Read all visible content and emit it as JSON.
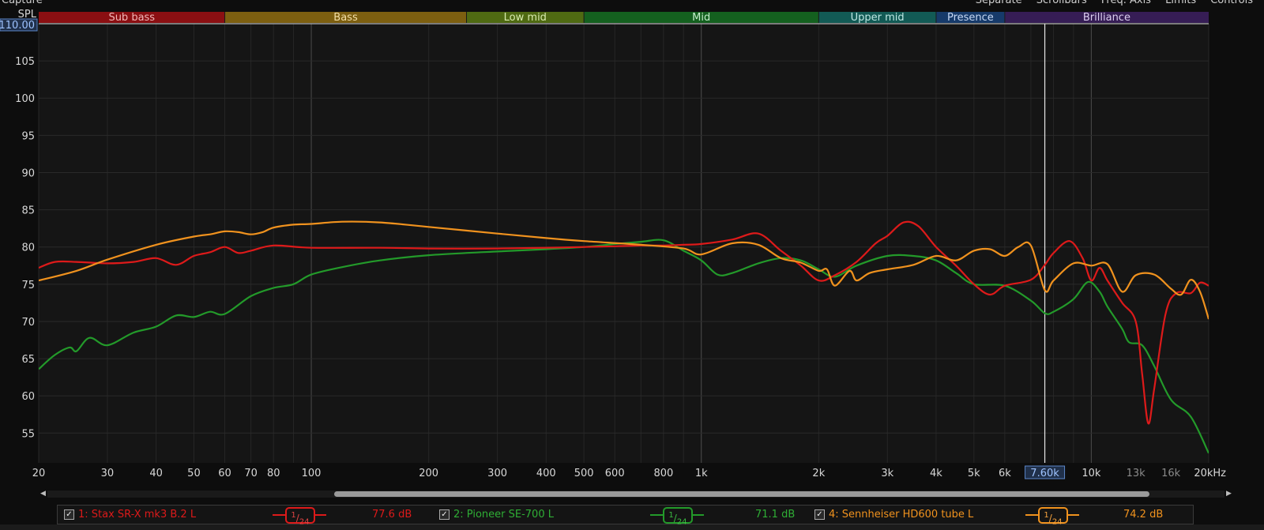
{
  "top_left_label": "Capture",
  "top_right_menu": [
    "Separate",
    "Scrollbars",
    "Freq. Axis",
    "Limits",
    "Controls"
  ],
  "bands": [
    {
      "label": "Sub bass",
      "color": "#8b0f12",
      "text_color": "#f0b8b8",
      "from": 20,
      "to": 60
    },
    {
      "label": "Bass",
      "color": "#7d5f10",
      "text_color": "#f3dfa8",
      "from": 60,
      "to": 250
    },
    {
      "label": "Low mid",
      "color": "#4f6a12",
      "text_color": "#d9ecb0",
      "from": 250,
      "to": 500
    },
    {
      "label": "Mid",
      "color": "#14601f",
      "text_color": "#c4eecb",
      "from": 500,
      "to": 2000
    },
    {
      "label": "Upper mid",
      "color": "#125a55",
      "text_color": "#bfe8e4",
      "from": 2000,
      "to": 4000
    },
    {
      "label": "Presence",
      "color": "#163a6a",
      "text_color": "#c6d8f4",
      "from": 4000,
      "to": 6000
    },
    {
      "label": "Brilliance",
      "color": "#361d55",
      "text_color": "#ddd0f0",
      "from": 6000,
      "to": 20000
    }
  ],
  "chart_data": {
    "type": "line",
    "ylabel": "SPL",
    "y_top_readout": "110.00",
    "cursor_readout": "7.60k",
    "cursor_freq": 7600,
    "xlim": [
      20,
      20000
    ],
    "ylim": [
      51,
      110
    ],
    "x_scale": "log",
    "x_ticks": [
      {
        "v": 20,
        "label": "20"
      },
      {
        "v": 30,
        "label": "30"
      },
      {
        "v": 40,
        "label": "40"
      },
      {
        "v": 50,
        "label": "50"
      },
      {
        "v": 60,
        "label": "60"
      },
      {
        "v": 70,
        "label": "70"
      },
      {
        "v": 80,
        "label": "80"
      },
      {
        "v": 100,
        "label": "100"
      },
      {
        "v": 200,
        "label": "200"
      },
      {
        "v": 300,
        "label": "300"
      },
      {
        "v": 400,
        "label": "400"
      },
      {
        "v": 500,
        "label": "500"
      },
      {
        "v": 600,
        "label": "600"
      },
      {
        "v": 800,
        "label": "800"
      },
      {
        "v": 1000,
        "label": "1k"
      },
      {
        "v": 2000,
        "label": "2k"
      },
      {
        "v": 3000,
        "label": "3k"
      },
      {
        "v": 4000,
        "label": "4k"
      },
      {
        "v": 5000,
        "label": "5k"
      },
      {
        "v": 6000,
        "label": "6k"
      },
      {
        "v": 10000,
        "label": "10k"
      },
      {
        "v": 13000,
        "label": "13k"
      },
      {
        "v": 16000,
        "label": "16k"
      },
      {
        "v": 20000,
        "label": "20kHz"
      }
    ],
    "y_ticks": [
      55,
      60,
      65,
      70,
      75,
      80,
      85,
      90,
      95,
      100,
      105
    ],
    "series": [
      {
        "name": "1: Stax SR-X mk3 B.2 L",
        "color": "#dd1a1a",
        "smoothing_num": "1",
        "smoothing_den": "24",
        "readout": "77.6 dB",
        "points": [
          [
            20,
            77.2
          ],
          [
            22,
            78
          ],
          [
            25,
            78
          ],
          [
            30,
            77.8
          ],
          [
            35,
            78
          ],
          [
            40,
            78.5
          ],
          [
            45,
            77.6
          ],
          [
            50,
            78.8
          ],
          [
            55,
            79.3
          ],
          [
            60,
            80
          ],
          [
            65,
            79.2
          ],
          [
            70,
            79.5
          ],
          [
            80,
            80.2
          ],
          [
            100,
            79.9
          ],
          [
            150,
            79.9
          ],
          [
            200,
            79.8
          ],
          [
            300,
            79.8
          ],
          [
            400,
            79.9
          ],
          [
            500,
            80
          ],
          [
            600,
            80.1
          ],
          [
            700,
            80.2
          ],
          [
            800,
            80.2
          ],
          [
            900,
            80.3
          ],
          [
            1000,
            80.4
          ],
          [
            1200,
            81
          ],
          [
            1400,
            81.8
          ],
          [
            1600,
            79.5
          ],
          [
            1800,
            77.5
          ],
          [
            2000,
            75.5
          ],
          [
            2200,
            76.2
          ],
          [
            2500,
            78
          ],
          [
            2800,
            80.5
          ],
          [
            3000,
            81.5
          ],
          [
            3300,
            83.3
          ],
          [
            3600,
            82.8
          ],
          [
            4000,
            80
          ],
          [
            4500,
            77.5
          ],
          [
            5000,
            75
          ],
          [
            5500,
            73.6
          ],
          [
            6000,
            74.8
          ],
          [
            7000,
            75.6
          ],
          [
            7600,
            77.6
          ],
          [
            8000,
            79.2
          ],
          [
            8800,
            80.8
          ],
          [
            9500,
            78.5
          ],
          [
            10000,
            75.5
          ],
          [
            10500,
            77.2
          ],
          [
            11000,
            75.5
          ],
          [
            12000,
            72.5
          ],
          [
            13000,
            70
          ],
          [
            13500,
            63
          ],
          [
            14000,
            56.3
          ],
          [
            14500,
            61
          ],
          [
            15500,
            71
          ],
          [
            16500,
            73.8
          ],
          [
            18000,
            73.8
          ],
          [
            19000,
            75.2
          ],
          [
            20000,
            74.8
          ]
        ]
      },
      {
        "name": "2: Pioneer SE-700 L",
        "color": "#239a2a",
        "smoothing_num": "1",
        "smoothing_den": "24",
        "readout": "71.1 dB",
        "points": [
          [
            20,
            63.6
          ],
          [
            22,
            65.5
          ],
          [
            24,
            66.5
          ],
          [
            25,
            66
          ],
          [
            27,
            67.8
          ],
          [
            30,
            66.8
          ],
          [
            35,
            68.5
          ],
          [
            40,
            69.3
          ],
          [
            45,
            70.8
          ],
          [
            50,
            70.6
          ],
          [
            55,
            71.3
          ],
          [
            60,
            71
          ],
          [
            70,
            73.4
          ],
          [
            80,
            74.5
          ],
          [
            90,
            75
          ],
          [
            100,
            76.3
          ],
          [
            120,
            77.3
          ],
          [
            150,
            78.2
          ],
          [
            200,
            78.9
          ],
          [
            300,
            79.4
          ],
          [
            400,
            79.7
          ],
          [
            500,
            80
          ],
          [
            600,
            80.4
          ],
          [
            700,
            80.7
          ],
          [
            800,
            80.9
          ],
          [
            900,
            79.5
          ],
          [
            1000,
            78.2
          ],
          [
            1100,
            76.3
          ],
          [
            1200,
            76.5
          ],
          [
            1400,
            77.8
          ],
          [
            1600,
            78.5
          ],
          [
            1800,
            78.2
          ],
          [
            2000,
            77
          ],
          [
            2200,
            76
          ],
          [
            2500,
            77.5
          ],
          [
            3000,
            78.8
          ],
          [
            3500,
            78.8
          ],
          [
            4000,
            78.2
          ],
          [
            4500,
            76.5
          ],
          [
            5000,
            75
          ],
          [
            6000,
            74.8
          ],
          [
            7000,
            72.8
          ],
          [
            7600,
            71.1
          ],
          [
            8000,
            71.3
          ],
          [
            9000,
            73
          ],
          [
            9800,
            75.3
          ],
          [
            10500,
            74
          ],
          [
            11000,
            72
          ],
          [
            12000,
            69
          ],
          [
            12500,
            67.2
          ],
          [
            13500,
            66.8
          ],
          [
            14500,
            64
          ],
          [
            16000,
            59.5
          ],
          [
            18000,
            57.2
          ],
          [
            20000,
            52.3
          ]
        ]
      },
      {
        "name": "4: Sennheiser HD600 tube L",
        "color": "#f0921e",
        "smoothing_num": "1",
        "smoothing_den": "24",
        "readout": "74.2 dB",
        "points": [
          [
            20,
            75.5
          ],
          [
            25,
            76.8
          ],
          [
            30,
            78.3
          ],
          [
            40,
            80.3
          ],
          [
            50,
            81.4
          ],
          [
            55,
            81.7
          ],
          [
            60,
            82.1
          ],
          [
            65,
            82
          ],
          [
            70,
            81.7
          ],
          [
            75,
            82
          ],
          [
            80,
            82.6
          ],
          [
            90,
            83
          ],
          [
            100,
            83.1
          ],
          [
            120,
            83.4
          ],
          [
            150,
            83.3
          ],
          [
            200,
            82.7
          ],
          [
            300,
            81.8
          ],
          [
            400,
            81.2
          ],
          [
            500,
            80.8
          ],
          [
            700,
            80.3
          ],
          [
            900,
            79.8
          ],
          [
            1000,
            79
          ],
          [
            1200,
            80.5
          ],
          [
            1400,
            80.3
          ],
          [
            1600,
            78.5
          ],
          [
            1800,
            77.9
          ],
          [
            2000,
            76.8
          ],
          [
            2100,
            77
          ],
          [
            2200,
            74.8
          ],
          [
            2400,
            76.8
          ],
          [
            2500,
            75.5
          ],
          [
            2700,
            76.5
          ],
          [
            3000,
            77
          ],
          [
            3500,
            77.6
          ],
          [
            4000,
            78.8
          ],
          [
            4500,
            78.2
          ],
          [
            5000,
            79.5
          ],
          [
            5500,
            79.7
          ],
          [
            6000,
            78.8
          ],
          [
            6500,
            80
          ],
          [
            7000,
            80.2
          ],
          [
            7600,
            74.2
          ],
          [
            8000,
            75.5
          ],
          [
            9000,
            77.8
          ],
          [
            10000,
            77.5
          ],
          [
            11000,
            77.7
          ],
          [
            12000,
            74
          ],
          [
            13000,
            76.2
          ],
          [
            14500,
            76.3
          ],
          [
            16000,
            74.4
          ],
          [
            17000,
            73.6
          ],
          [
            18000,
            75.6
          ],
          [
            19000,
            74
          ],
          [
            20000,
            70.3
          ]
        ]
      }
    ]
  },
  "scrollbar": {
    "left_arrow": "◀",
    "right_arrow": "▶"
  },
  "checkbox_mark": "✓"
}
